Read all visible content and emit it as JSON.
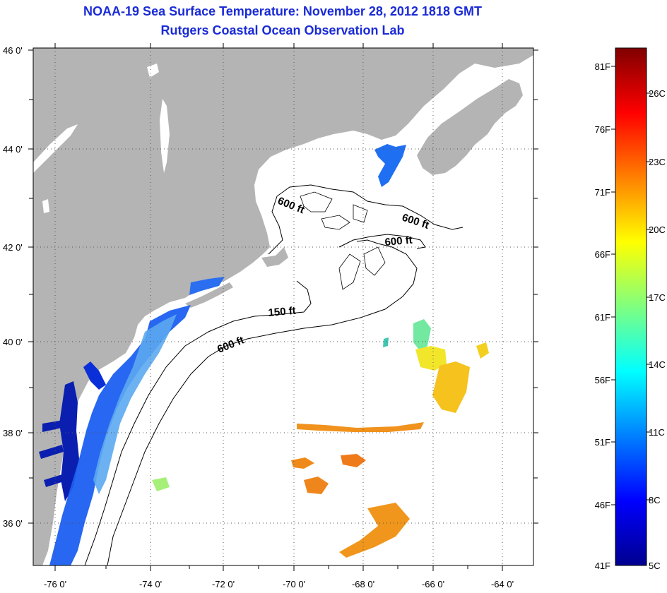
{
  "title": {
    "line1": "NOAA-19 Sea Surface Temperature:  November 28, 2012 1818 GMT",
    "line2": "Rutgers Coastal Ocean Observation Lab"
  },
  "map": {
    "lon_range": [
      -77,
      -63
    ],
    "lat_range": [
      35,
      46
    ],
    "lat_ticks": [
      {
        "value": 46,
        "label": "46 0'"
      },
      {
        "value": 44,
        "label": "44 0'"
      },
      {
        "value": 42,
        "label": "42 0'"
      },
      {
        "value": 40,
        "label": "40 0'"
      },
      {
        "value": 38,
        "label": "38 0'"
      },
      {
        "value": 36,
        "label": "36 0'"
      }
    ],
    "lon_ticks": [
      {
        "value": -76,
        "label": "-76 0'"
      },
      {
        "value": -74,
        "label": "-74 0'"
      },
      {
        "value": -72,
        "label": "-72 0'"
      },
      {
        "value": -70,
        "label": "-70 0'"
      },
      {
        "value": -68,
        "label": "-68 0'"
      },
      {
        "value": -66,
        "label": "-66 0'"
      },
      {
        "value": -64,
        "label": "-64 0'"
      }
    ],
    "contour_labels": [
      "600 ft",
      "600 ft",
      "600 ft",
      "150 ft",
      "600 ft"
    ],
    "colors": {
      "land": "#b4b4b4",
      "ocean": "#ffffff",
      "grid": "#555555"
    }
  },
  "colorbar": {
    "fahrenheit": [
      "81F",
      "76F",
      "71F",
      "66F",
      "61F",
      "56F",
      "51F",
      "46F",
      "41F"
    ],
    "celsius": [
      "26C",
      "23C",
      "20C",
      "17C",
      "14C",
      "11C",
      "8C",
      "5C"
    ],
    "range_c": [
      5,
      27.2
    ]
  }
}
